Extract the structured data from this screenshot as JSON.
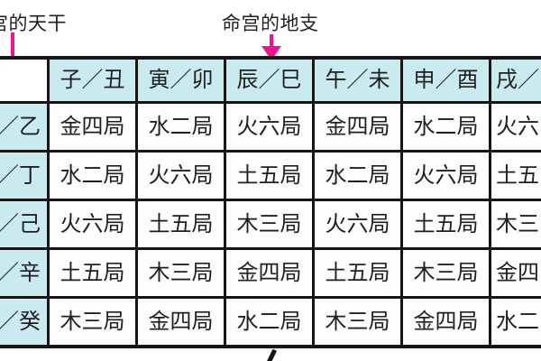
{
  "annotations": {
    "left_label": "宫的天干",
    "right_label": "命宫的地支"
  },
  "table": {
    "corner": "",
    "columns": [
      "子／丑",
      "寅／卯",
      "辰／巳",
      "午／未",
      "申／酉",
      "戌／"
    ],
    "rows": [
      {
        "header": "／乙",
        "cells": [
          "金四局",
          "水二局",
          "火六局",
          "金四局",
          "水二局",
          "火六"
        ]
      },
      {
        "header": "／丁",
        "cells": [
          "水二局",
          "火六局",
          "土五局",
          "水二局",
          "火六局",
          "土五"
        ]
      },
      {
        "header": "／己",
        "cells": [
          "火六局",
          "土五局",
          "木三局",
          "火六局",
          "土五局",
          "木三"
        ]
      },
      {
        "header": "／辛",
        "cells": [
          "土五局",
          "木三局",
          "金四局",
          "土五局",
          "木三局",
          "金四"
        ]
      },
      {
        "header": "／癸",
        "cells": [
          "木三局",
          "金四局",
          "水二局",
          "木三局",
          "金四局",
          "水二"
        ]
      }
    ]
  },
  "colors": {
    "header_bg": "#c9eaef",
    "cell_bg": "#fdfdfd",
    "border": "#161616",
    "arrow": "#f2128f",
    "text": "#1f1f1f"
  }
}
